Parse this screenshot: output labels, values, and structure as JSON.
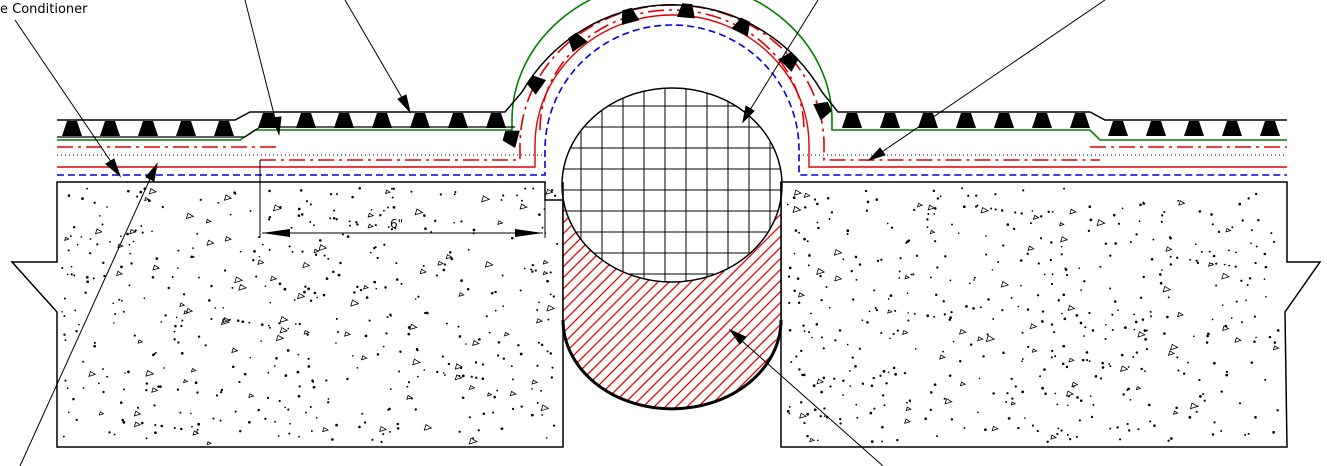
{
  "labels": {
    "top_left_callout": "e Conditioner",
    "dimension": "6\""
  },
  "colors": {
    "background": "#ffffff",
    "line": "#000000",
    "red_layer": "#e00000",
    "green_layer": "#008000",
    "blue_layer": "#0000e0",
    "hatch": "#e00000"
  },
  "layers": [
    "black-protection-course",
    "green-membrane",
    "red-dashdot-membrane",
    "dotted-layer",
    "red-membrane",
    "blue-dashed-primer"
  ]
}
